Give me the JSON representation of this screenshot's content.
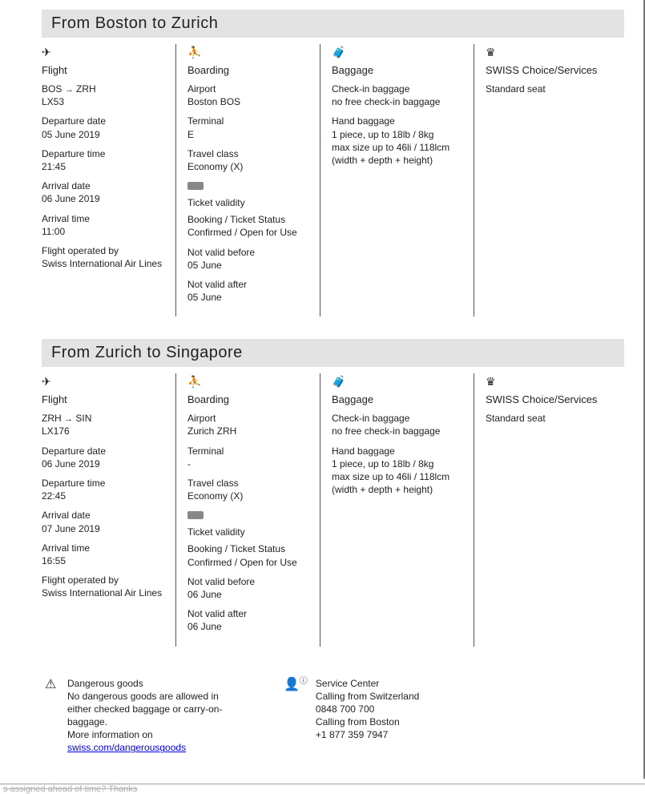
{
  "segments": [
    {
      "header": "From Boston to Zurich",
      "flight": {
        "route_from": "BOS",
        "route_to": "ZRH",
        "number": "LX53",
        "dep_date_label": "Departure date",
        "dep_date": "05 June 2019",
        "dep_time_label": "Departure time",
        "dep_time": "21:45",
        "arr_date_label": "Arrival date",
        "arr_date": "06 June 2019",
        "arr_time_label": "Arrival time",
        "arr_time": "11:00",
        "operated_by_label": "Flight operated by",
        "operated_by": "Swiss International Air Lines"
      },
      "boarding": {
        "airport_label": "Airport",
        "airport": "Boston BOS",
        "terminal_label": "Terminal",
        "terminal": "E",
        "class_label": "Travel class",
        "class": "Economy (X)",
        "ticket_validity_label": "Ticket validity",
        "status_label": "Booking / Ticket Status",
        "status": "Confirmed / Open for Use",
        "nvb_label": "Not valid before",
        "nvb": "05 June",
        "nva_label": "Not valid after",
        "nva": "05 June"
      },
      "baggage": {
        "checkin_label": "Check-in baggage",
        "checkin": "no free check-in baggage",
        "hand_label": "Hand baggage",
        "hand_line1": "1 piece, up to 18lb / 8kg",
        "hand_line2": "max size up to 46li / 118lcm",
        "hand_line3": "(width + depth + height)"
      },
      "services": {
        "title": "SWISS Choice/Services",
        "seat": "Standard seat"
      }
    },
    {
      "header": "From Zurich to Singapore",
      "flight": {
        "route_from": "ZRH",
        "route_to": "SIN",
        "number": "LX176",
        "dep_date_label": "Departure date",
        "dep_date": "06 June 2019",
        "dep_time_label": "Departure time",
        "dep_time": "22:45",
        "arr_date_label": "Arrival date",
        "arr_date": "07 June 2019",
        "arr_time_label": "Arrival time",
        "arr_time": "16:55",
        "operated_by_label": "Flight operated by",
        "operated_by": "Swiss International Air Lines"
      },
      "boarding": {
        "airport_label": "Airport",
        "airport": "Zurich ZRH",
        "terminal_label": "Terminal",
        "terminal": "-",
        "class_label": "Travel class",
        "class": "Economy (X)",
        "ticket_validity_label": "Ticket validity",
        "status_label": "Booking / Ticket Status",
        "status": "Confirmed / Open for Use",
        "nvb_label": "Not valid before",
        "nvb": "06 June",
        "nva_label": "Not valid after",
        "nva": "06 June"
      },
      "baggage": {
        "checkin_label": "Check-in baggage",
        "checkin": "no free check-in baggage",
        "hand_label": "Hand baggage",
        "hand_line1": "1 piece, up to 18lb / 8kg",
        "hand_line2": "max size up to 46li / 118lcm",
        "hand_line3": "(width + depth + height)"
      },
      "services": {
        "title": "SWISS Choice/Services",
        "seat": "Standard seat"
      }
    }
  ],
  "col_titles": {
    "flight": "Flight",
    "boarding": "Boarding",
    "baggage": "Baggage"
  },
  "footer": {
    "dg_title": "Dangerous goods",
    "dg_line1": "No dangerous goods are allowed in either checked baggage or carry-on-baggage.",
    "dg_line2": "More information on",
    "dg_link": "swiss.com/dangerousgoods",
    "sc_title": "Service Center",
    "sc_line1": "Calling from Switzerland",
    "sc_phone1": "0848 700 700",
    "sc_line2": "Calling from Boston",
    "sc_phone2": "+1 877 359 7947"
  },
  "bottomstrip": "s assigned ahead of time? Thanks"
}
